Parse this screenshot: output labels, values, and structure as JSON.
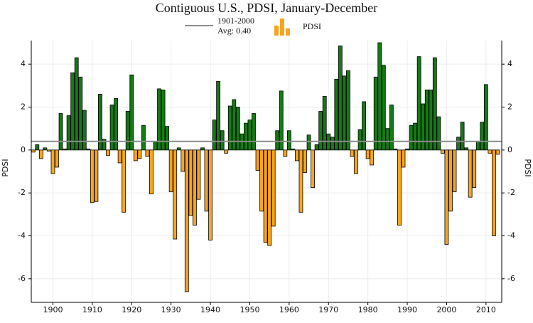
{
  "chart_data": {
    "type": "bar",
    "title": "Contiguous U.S., PDSI, January-December",
    "ylabel": "PDSI",
    "x": [
      1895,
      1896,
      1897,
      1898,
      1899,
      1900,
      1901,
      1902,
      1903,
      1904,
      1905,
      1906,
      1907,
      1908,
      1909,
      1910,
      1911,
      1912,
      1913,
      1914,
      1915,
      1916,
      1917,
      1918,
      1919,
      1920,
      1921,
      1922,
      1923,
      1924,
      1925,
      1926,
      1927,
      1928,
      1929,
      1930,
      1931,
      1932,
      1933,
      1934,
      1935,
      1936,
      1937,
      1938,
      1939,
      1940,
      1941,
      1942,
      1943,
      1944,
      1945,
      1946,
      1947,
      1948,
      1949,
      1950,
      1951,
      1952,
      1953,
      1954,
      1955,
      1956,
      1957,
      1958,
      1959,
      1960,
      1961,
      1962,
      1963,
      1964,
      1965,
      1966,
      1967,
      1968,
      1969,
      1970,
      1971,
      1972,
      1973,
      1974,
      1975,
      1976,
      1977,
      1978,
      1979,
      1980,
      1981,
      1982,
      1983,
      1984,
      1985,
      1986,
      1987,
      1988,
      1989,
      1990,
      1991,
      1992,
      1993,
      1994,
      1995,
      1996,
      1997,
      1998,
      1999,
      2000,
      2001,
      2002,
      2003,
      2004,
      2005,
      2006,
      2007,
      2008,
      2009,
      2010,
      2011,
      2012,
      2013
    ],
    "series": [
      {
        "name": "PDSI",
        "positive_color": "#157a15",
        "negative_color": "#f7a51e",
        "values": [
          -0.1,
          0.25,
          -0.4,
          0.1,
          -0.05,
          -1.1,
          -0.8,
          1.7,
          0.05,
          1.6,
          3.6,
          4.3,
          3.4,
          1.85,
          0.05,
          -2.45,
          -2.4,
          2.6,
          0.5,
          -0.25,
          2.1,
          2.4,
          -0.6,
          -2.9,
          1.8,
          3.5,
          -0.5,
          -0.4,
          1.15,
          -0.3,
          -2.05,
          0.4,
          2.85,
          2.8,
          1.1,
          -1.95,
          -4.15,
          0.1,
          -1.0,
          -6.6,
          -3.05,
          -3.5,
          -2.3,
          0.1,
          -2.85,
          -4.2,
          1.4,
          3.2,
          0.9,
          -0.15,
          2.05,
          2.35,
          2.0,
          0.75,
          1.25,
          1.4,
          1.7,
          -0.95,
          -2.85,
          -4.3,
          -4.45,
          -3.55,
          0.9,
          2.75,
          -0.3,
          0.9,
          0.05,
          -0.5,
          -2.9,
          -1.05,
          0.7,
          -1.75,
          0.25,
          1.8,
          2.5,
          0.75,
          0.6,
          3.3,
          4.85,
          3.45,
          3.7,
          -0.3,
          -1.1,
          0.95,
          2.25,
          -0.4,
          -0.7,
          3.4,
          5.0,
          3.95,
          1.0,
          2.1,
          0.05,
          -3.5,
          -0.8,
          0.05,
          1.15,
          1.25,
          4.35,
          2.15,
          2.8,
          2.8,
          4.3,
          1.55,
          -0.15,
          -4.4,
          -2.85,
          -1.95,
          0.6,
          1.3,
          0.1,
          -2.2,
          -1.75,
          0.4,
          1.3,
          3.05,
          -0.15,
          -4.0,
          -0.2
        ]
      }
    ],
    "reference_line": {
      "name": "1901-2000",
      "label": "Avg: 0.40",
      "value": 0.4,
      "color": "#8c8c8c"
    },
    "xlim": [
      1894.5,
      2014
    ],
    "xticks": [
      1900,
      1910,
      1920,
      1930,
      1940,
      1950,
      1960,
      1970,
      1980,
      1990,
      2000,
      2010
    ],
    "ylim": [
      -7.1,
      5.1
    ],
    "yticks": [
      -6,
      -4,
      -2,
      0,
      2,
      4
    ],
    "grid": true
  }
}
